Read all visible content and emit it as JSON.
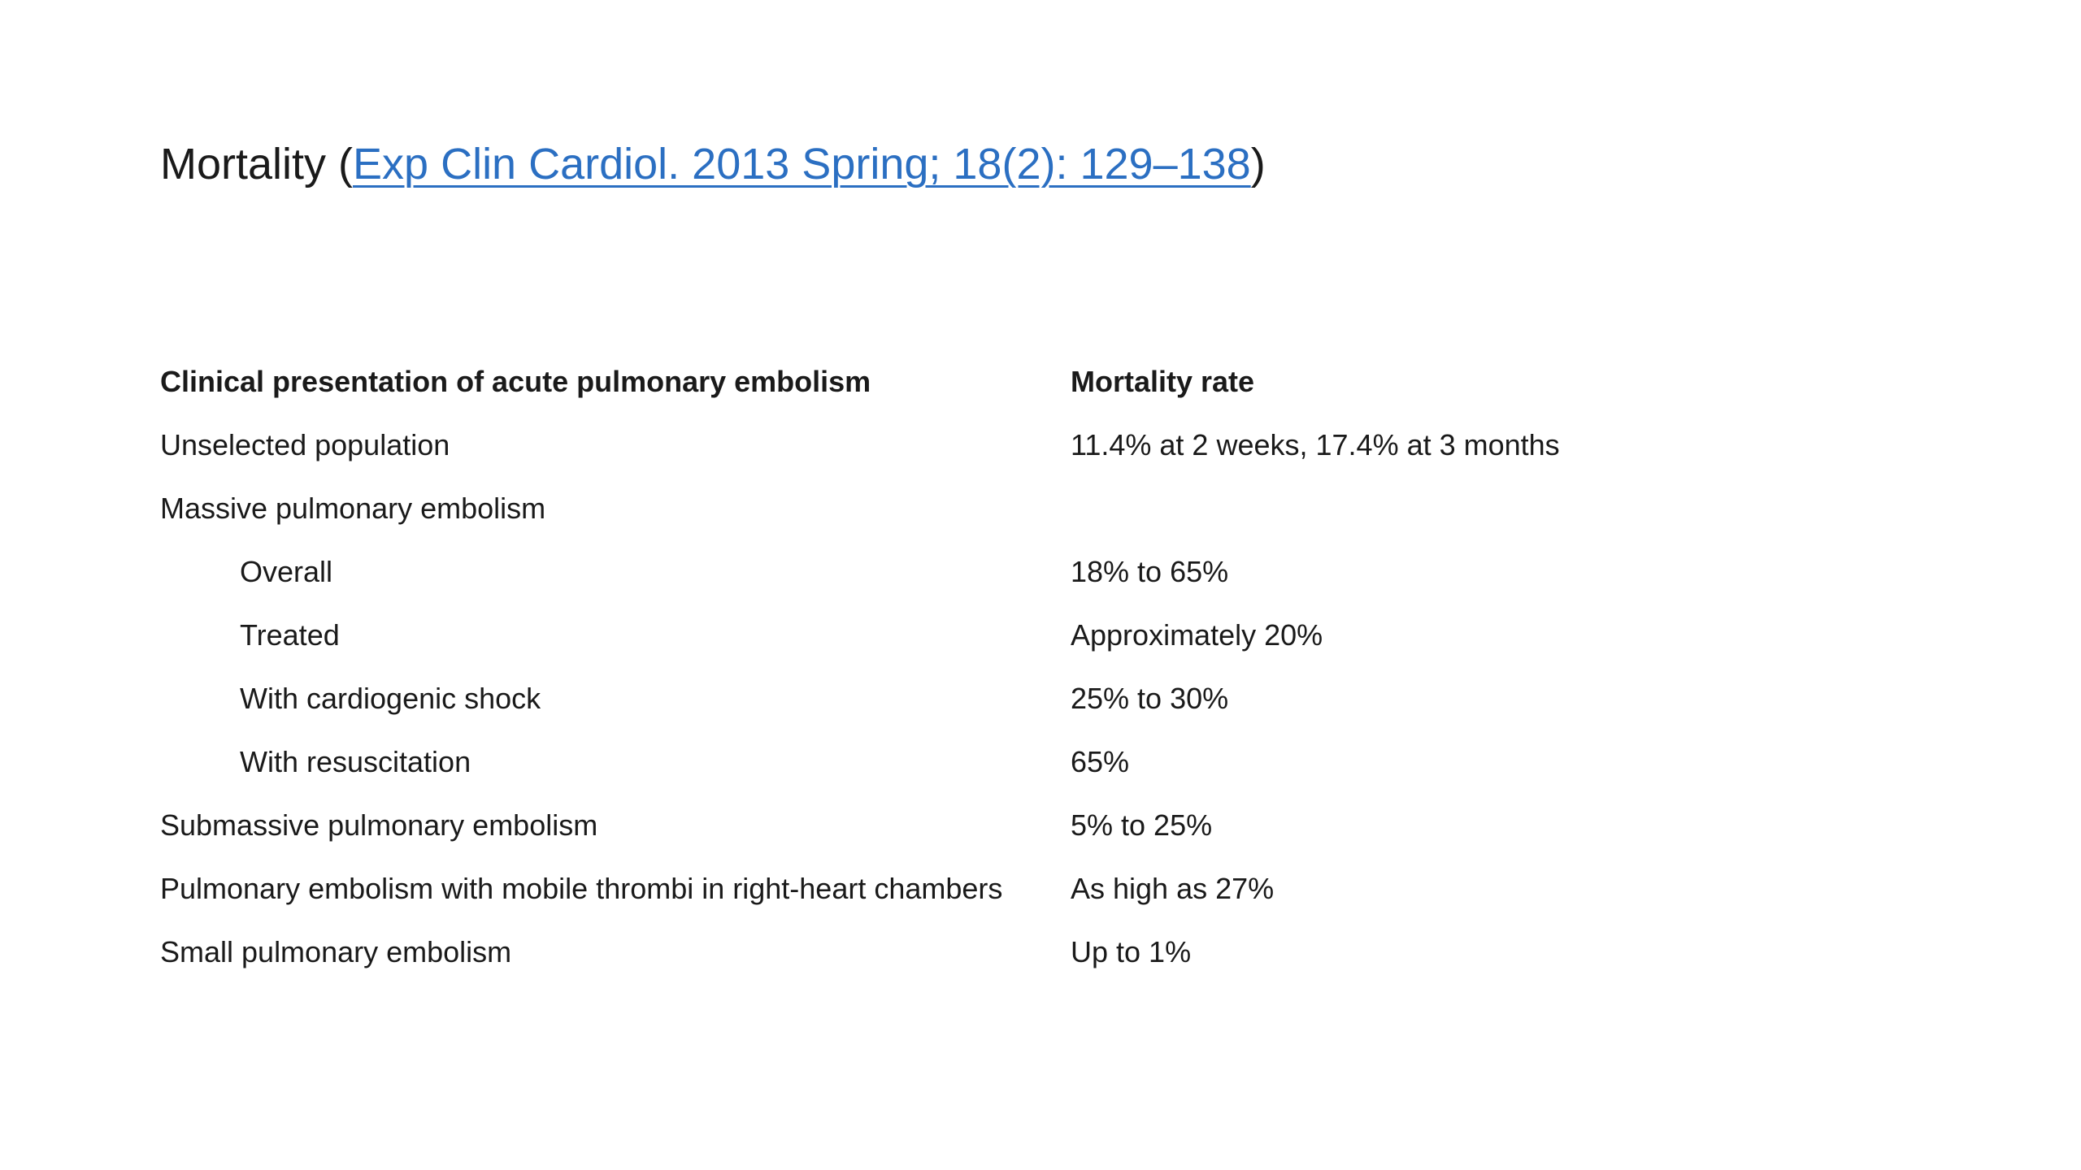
{
  "slide": {
    "title_prefix": "Mortality (",
    "citation_link": "Exp Clin Cardiol. 2013 Spring; 18(2): 129–138",
    "title_suffix": ")",
    "link_color": "#2B6FC2",
    "text_color": "#1a1a1a"
  },
  "table": {
    "headers": {
      "presentation": "Clinical presentation of acute pulmonary embolism",
      "rate": "Mortality rate"
    },
    "rows": [
      {
        "label": "Unselected population",
        "value": "11.4% at 2 weeks, 17.4% at 3 months",
        "indent": 0
      },
      {
        "label": "Massive pulmonary embolism",
        "value": "",
        "indent": 0
      },
      {
        "label": "Overall",
        "value": "18% to 65%",
        "indent": 1
      },
      {
        "label": "Treated",
        "value": "Approximately 20%",
        "indent": 1
      },
      {
        "label": "With cardiogenic shock",
        "value": "25% to 30%",
        "indent": 1
      },
      {
        "label": "With resuscitation",
        "value": "65%",
        "indent": 1
      },
      {
        "label": "Submassive pulmonary embolism",
        "value": "5% to 25%",
        "indent": 0
      },
      {
        "label": "Pulmonary embolism with mobile thrombi in right-heart chambers",
        "value": "As high as 27%",
        "indent": 0
      },
      {
        "label": "Small pulmonary embolism",
        "value": "Up to 1%",
        "indent": 0
      }
    ]
  }
}
